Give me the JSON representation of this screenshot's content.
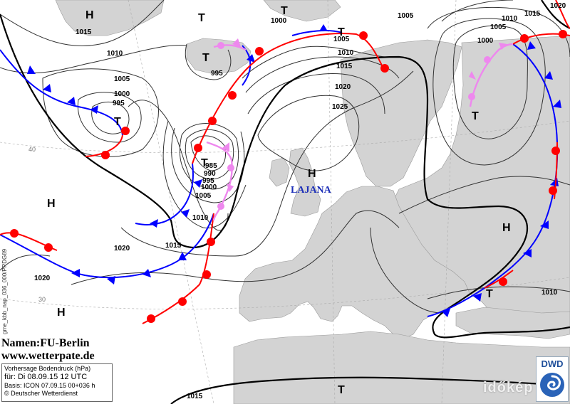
{
  "map": {
    "pressure_labels": [
      "1015",
      "1010",
      "1005",
      "1000",
      "995",
      "995",
      "1000",
      "1005",
      "1010",
      "1015",
      "1020",
      "1025",
      "1005",
      "1010",
      "1015",
      "1020",
      "1005",
      "1000",
      "985",
      "990",
      "995",
      "1000",
      "1005",
      "1010",
      "1015",
      "1020",
      "1020",
      "1010",
      "1015"
    ],
    "high_symbol": "H",
    "low_symbol": "T",
    "lat_labels": [
      "40",
      "30"
    ],
    "place_label": "LAJANA",
    "colors": {
      "land": "#d3d3d3",
      "sea": "#ffffff",
      "warm_front": "#ff0000",
      "cold_front": "#0000ff",
      "occlusion": "#ee88ee",
      "isobar": "#333333",
      "isobar_1015": "#000000"
    }
  },
  "credits": {
    "namen": "Namen:FU-Berlin",
    "site": "www.wetterpate.de",
    "product": "Vorhersage Bodendruck (hPa)",
    "valid": "für:  Di 08.09.15  12 UTC",
    "basis": "Basis: ICON  07.09.15 00+036 h",
    "copyright": "© Deutscher Wetterdienst",
    "side_code": "gme_kbb_nap_036_000/PPDG89"
  },
  "logo": {
    "text": "DWD",
    "icon": "dwd-swirl-icon"
  },
  "watermark": "időkép"
}
